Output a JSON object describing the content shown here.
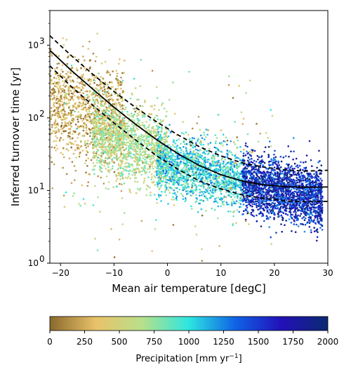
{
  "chart_data": {
    "type": "scatter",
    "xlabel": "Mean air temperature [degC]",
    "ylabel": "Inferred turnover time [yr]",
    "xlim": [
      -22,
      30
    ],
    "ylim": [
      1,
      3000
    ],
    "yscale": "log",
    "x_ticks": [
      -20,
      -10,
      0,
      10,
      20,
      30
    ],
    "y_ticks": [
      1,
      10,
      100,
      1000
    ],
    "y_tick_labels": [
      "10",
      "10",
      "10",
      "10"
    ],
    "y_tick_exponents": [
      "0",
      "1",
      "2",
      "3"
    ],
    "grid": false,
    "fit_lines": [
      {
        "style": "solid",
        "color": "#000000",
        "x": [
          -22,
          -18,
          -14,
          -10,
          -6,
          -2,
          2,
          6,
          10,
          14,
          18,
          22,
          26,
          30
        ],
        "y": [
          850,
          450,
          250,
          140,
          82,
          50,
          32,
          22,
          16.5,
          13.5,
          12,
          11.3,
          11.1,
          11.2
        ]
      },
      {
        "style": "dashed",
        "color": "#000000",
        "x": [
          -22,
          -18,
          -14,
          -10,
          -6,
          -2,
          2,
          6,
          10,
          14,
          18,
          22,
          26,
          30
        ],
        "y": [
          1350,
          720,
          400,
          230,
          140,
          88,
          58,
          40,
          30,
          24,
          21,
          19.2,
          18.5,
          19
        ]
      },
      {
        "style": "dashed",
        "color": "#000000",
        "x": [
          -22,
          -18,
          -14,
          -10,
          -6,
          -2,
          2,
          6,
          10,
          14,
          18,
          22,
          26,
          30
        ],
        "y": [
          520,
          270,
          150,
          85,
          50,
          30,
          19.5,
          13.5,
          10.5,
          8.7,
          7.8,
          7.2,
          7,
          7.1
        ]
      }
    ],
    "scatter_clusters": [
      {
        "x_range": [
          -22,
          -8
        ],
        "y_center": 120,
        "y_spread": 0.35,
        "precip": [
          0,
          500
        ],
        "count": 1100
      },
      {
        "x_range": [
          -14,
          0
        ],
        "y_center": 45,
        "y_spread": 0.25,
        "precip": [
          400,
          900
        ],
        "count": 1300
      },
      {
        "x_range": [
          -2,
          14
        ],
        "y_center": 18,
        "y_spread": 0.2,
        "precip": [
          700,
          1300
        ],
        "count": 1500
      },
      {
        "x_range": [
          14,
          29
        ],
        "y_center": 10,
        "y_spread": 0.2,
        "precip": [
          1200,
          2000
        ],
        "count": 2200
      },
      {
        "x_range": [
          -20,
          20
        ],
        "y_center": 30,
        "y_spread": 0.6,
        "precip": [
          0,
          1000
        ],
        "count": 250
      }
    ],
    "colorbar": {
      "label": "Precipitation [mm yr",
      "label_exponent": "−1",
      "label_suffix": "]",
      "range": [
        0,
        2000
      ],
      "ticks": [
        "0",
        "250",
        "500",
        "750",
        "1000",
        "1250",
        "1500",
        "1750",
        "2000"
      ],
      "colors": [
        "#8a6a2c",
        "#e9c26a",
        "#b7e08a",
        "#2de6e0",
        "#0f63e6",
        "#2210b8",
        "#0a2a70"
      ]
    }
  }
}
